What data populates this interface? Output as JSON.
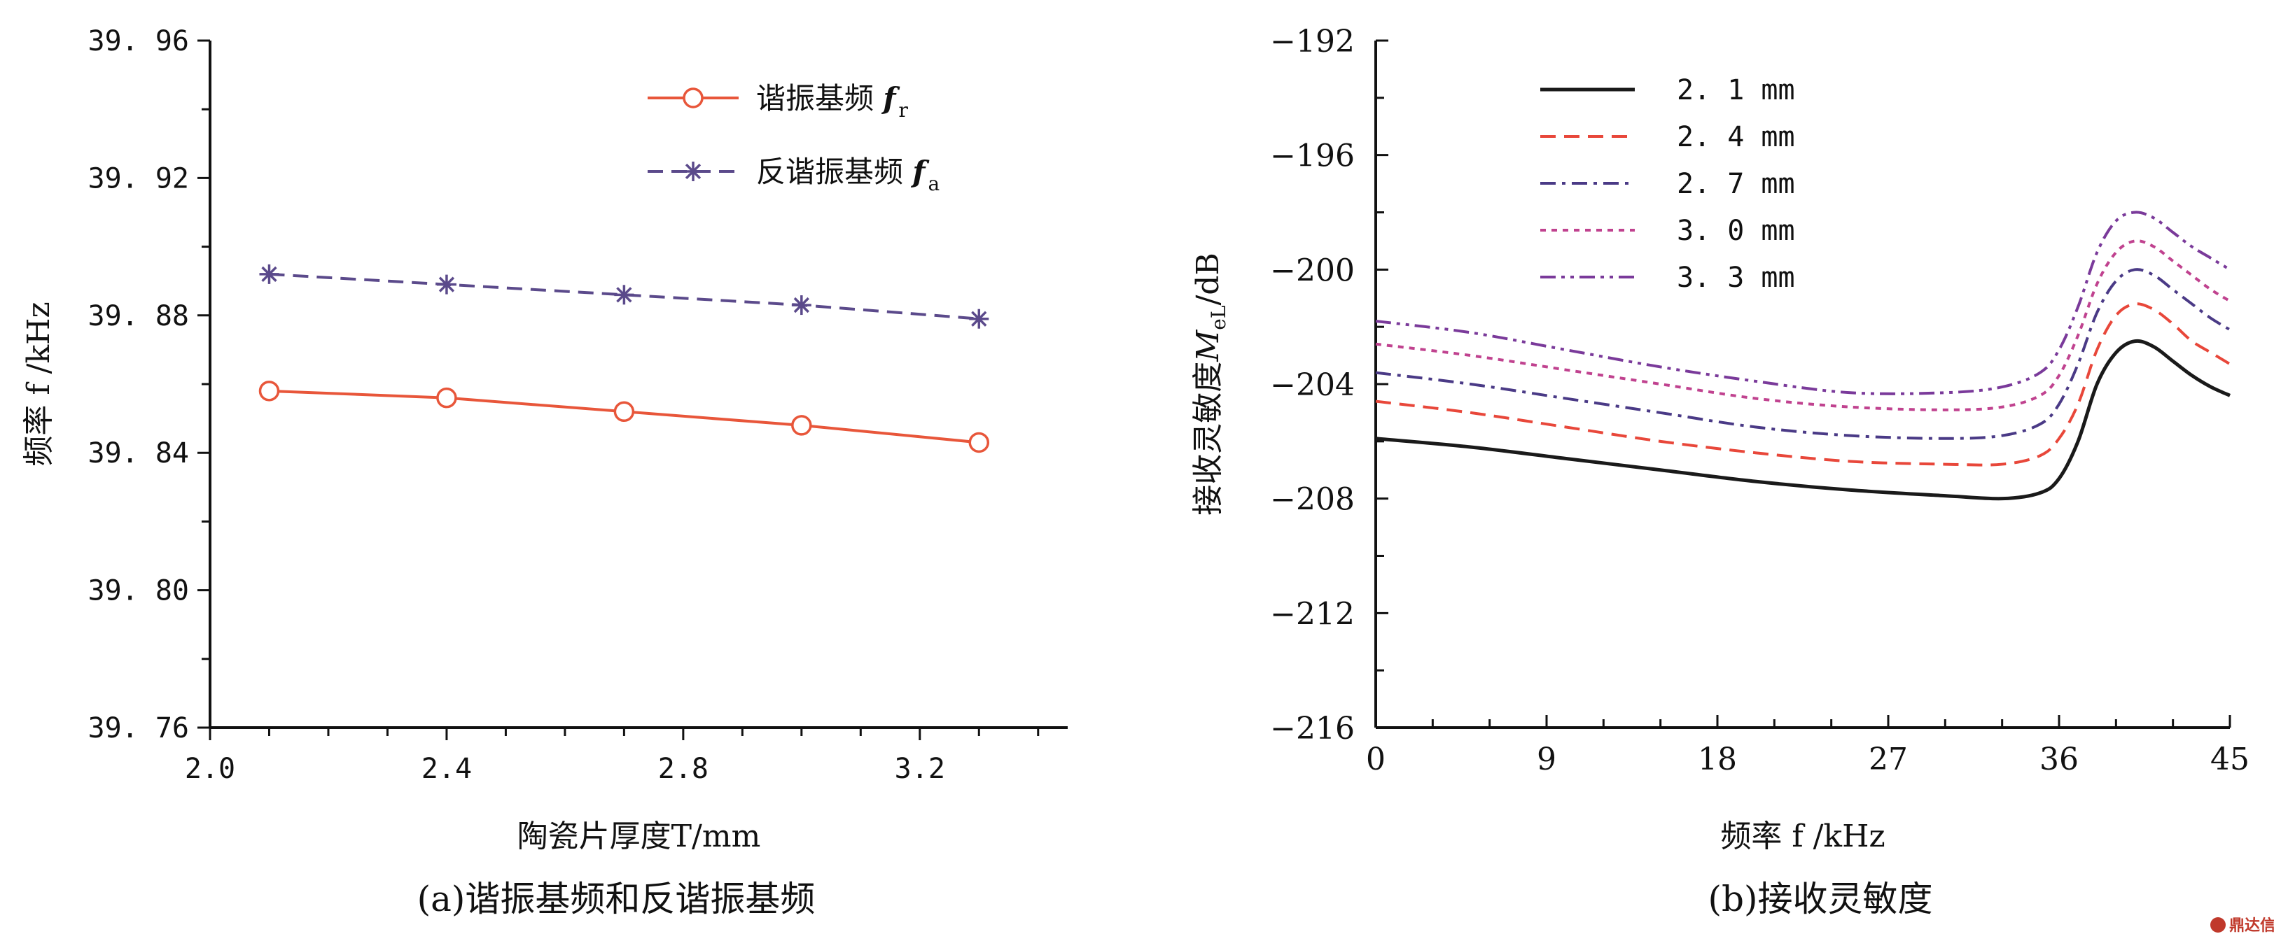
{
  "chart_data": [
    {
      "type": "line",
      "caption": "(a)谐振基频和反谐振基频",
      "xlabel": "陶瓷片厚度T/mm",
      "ylabel": "频率 f /kHz",
      "xlim": [
        2.0,
        3.45
      ],
      "ylim": [
        39.76,
        39.96
      ],
      "xticks": [
        2.0,
        2.4,
        2.8,
        3.2
      ],
      "xtick_labels": [
        "2.0",
        "2.4",
        "2.8",
        "3.2"
      ],
      "yticks": [
        39.76,
        39.8,
        39.84,
        39.88,
        39.92,
        39.96
      ],
      "ytick_labels": [
        "39. 76",
        "39. 80",
        "39. 84",
        "39. 88",
        "39. 92",
        "39. 96"
      ],
      "legend_position": "top-right",
      "grid": false,
      "series": [
        {
          "name": "谐振基频",
          "symbol_main": "f",
          "symbol_sub": "r",
          "color": "#e8563a",
          "marker": "circle",
          "dash": "solid",
          "x": [
            2.1,
            2.4,
            2.7,
            3.0,
            3.3
          ],
          "y": [
            39.858,
            39.856,
            39.852,
            39.848,
            39.843
          ]
        },
        {
          "name": "反谐振基频",
          "symbol_main": "f",
          "symbol_sub": "a",
          "color": "#5b4a8b",
          "marker": "asterisk",
          "dash": "dashed",
          "x": [
            2.1,
            2.4,
            2.7,
            3.0,
            3.3
          ],
          "y": [
            39.892,
            39.889,
            39.886,
            39.883,
            39.879
          ]
        }
      ]
    },
    {
      "type": "line",
      "caption": "(b)接收灵敏度",
      "xlabel": "频率 f /kHz",
      "ylabel": "接收灵敏度M_eL/dB",
      "ylabel_main": "接收灵敏度",
      "ylabel_sym": "M",
      "ylabel_sub": "eL",
      "ylabel_unit": "/dB",
      "xlim": [
        0,
        45
      ],
      "ylim": [
        -216,
        -192
      ],
      "xticks": [
        0,
        9,
        18,
        27,
        36,
        45
      ],
      "xtick_labels": [
        "0",
        "9",
        "18",
        "27",
        "36",
        "45"
      ],
      "yticks": [
        -216,
        -212,
        -208,
        -204,
        -200,
        -196,
        -192
      ],
      "ytick_labels": [
        "−216",
        "−212",
        "−208",
        "−204",
        "−200",
        "−196",
        "−192"
      ],
      "legend_position": "top-left",
      "grid": false,
      "x": [
        0,
        5,
        10,
        15,
        20,
        25,
        30,
        33,
        35,
        36,
        37,
        38,
        39,
        40,
        41,
        42,
        43,
        44,
        45
      ],
      "series": [
        {
          "name": "2. 1  mm",
          "color": "#1a1a1a",
          "dash": "solid",
          "y": [
            -205.9,
            -206.2,
            -206.6,
            -207.0,
            -207.4,
            -207.7,
            -207.9,
            -208.0,
            -207.8,
            -207.3,
            -206.0,
            -204.0,
            -202.9,
            -202.5,
            -202.7,
            -203.2,
            -203.7,
            -204.1,
            -204.4
          ]
        },
        {
          "name": "2. 4  mm",
          "color": "#e8473a",
          "dash": "dashed",
          "y": [
            -204.6,
            -205.0,
            -205.5,
            -206.0,
            -206.4,
            -206.7,
            -206.8,
            -206.8,
            -206.5,
            -205.9,
            -204.7,
            -202.8,
            -201.6,
            -201.2,
            -201.4,
            -201.9,
            -202.5,
            -202.9,
            -203.3
          ]
        },
        {
          "name": "2. 7  mm",
          "color": "#4a3a86",
          "dash": "dashdot",
          "y": [
            -203.6,
            -204.0,
            -204.5,
            -205.0,
            -205.5,
            -205.8,
            -205.9,
            -205.8,
            -205.4,
            -204.7,
            -203.3,
            -201.5,
            -200.4,
            -200.0,
            -200.2,
            -200.7,
            -201.2,
            -201.7,
            -202.1
          ]
        },
        {
          "name": "3. 0  mm",
          "color": "#c0428f",
          "dash": "dotted",
          "y": [
            -202.6,
            -203.0,
            -203.5,
            -204.0,
            -204.5,
            -204.8,
            -204.9,
            -204.8,
            -204.4,
            -203.7,
            -202.3,
            -200.5,
            -199.4,
            -199.0,
            -199.2,
            -199.7,
            -200.2,
            -200.7,
            -201.1
          ]
        },
        {
          "name": "3. 3  mm",
          "color": "#7a3a9a",
          "dash": "dashdotdot",
          "y": [
            -201.8,
            -202.2,
            -202.8,
            -203.4,
            -203.9,
            -204.3,
            -204.3,
            -204.1,
            -203.6,
            -202.8,
            -201.3,
            -199.4,
            -198.3,
            -198.0,
            -198.2,
            -198.7,
            -199.2,
            -199.6,
            -200.0
          ]
        }
      ]
    }
  ],
  "watermark": "鼎达信"
}
